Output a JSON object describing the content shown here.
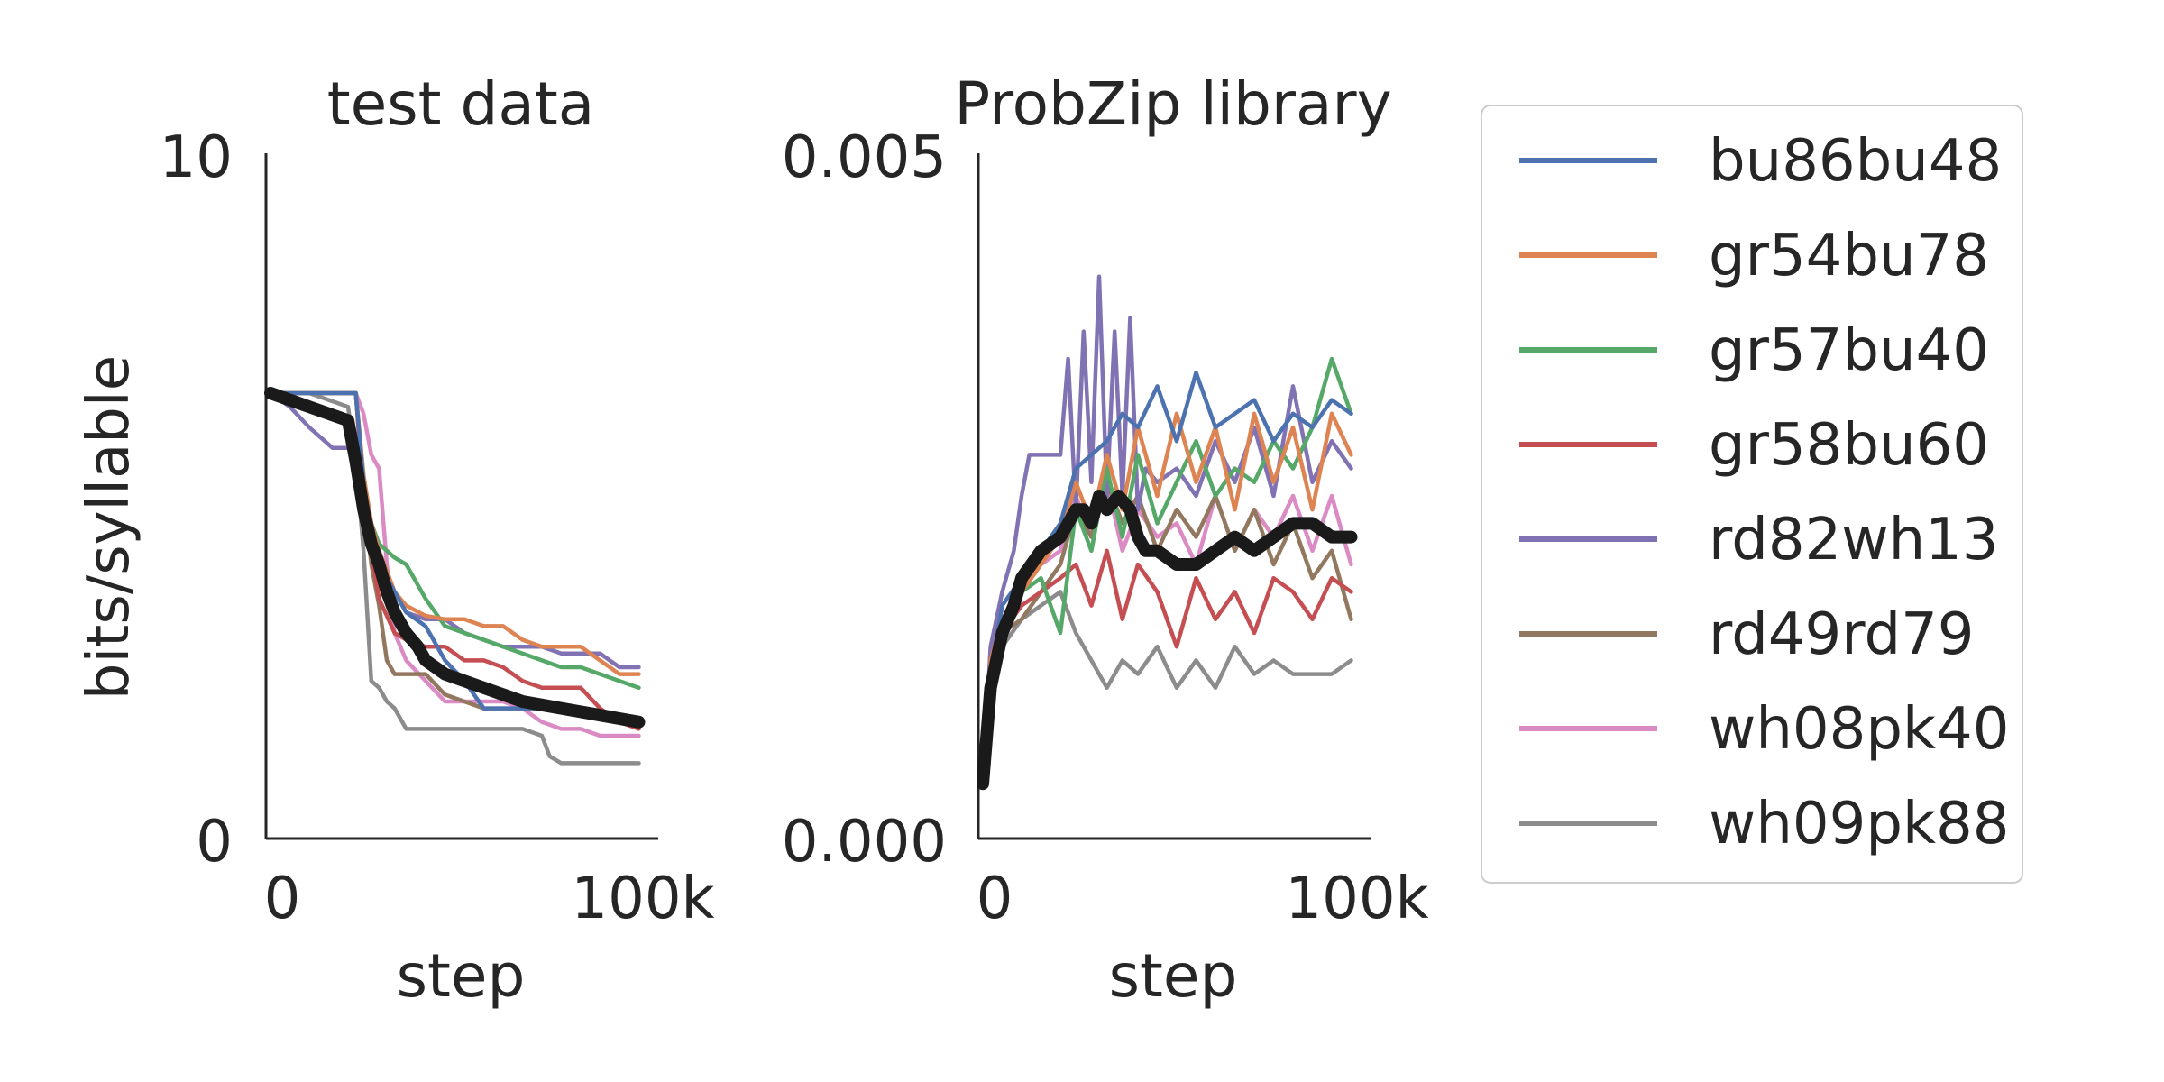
{
  "legend": {
    "position": "right",
    "entries": [
      "bu86bu48",
      "gr54bu78",
      "gr57bu40",
      "gr58bu60",
      "rd82wh13",
      "rd49rd79",
      "wh08pk40",
      "wh09pk88"
    ],
    "colors": [
      "#4c72b0",
      "#dd8452",
      "#55a868",
      "#c44e52",
      "#8172b3",
      "#937860",
      "#da8bc3",
      "#8c8c8c"
    ]
  },
  "mean_color": "#1a1a1a",
  "chart_data": [
    {
      "type": "line",
      "title": "test data",
      "xlabel": "step",
      "ylabel": "bits/syllable",
      "xlim": [
        0,
        100000
      ],
      "ylim": [
        0,
        10
      ],
      "xtick_labels": [
        "0",
        "100k"
      ],
      "ytick_labels": [
        "10",
        "0"
      ],
      "grid": false,
      "series": [
        {
          "name": "bu86bu48",
          "x": [
            0,
            10000,
            22000,
            24000,
            26000,
            28000,
            32000,
            35000,
            40000,
            45000,
            50000,
            55000,
            60000,
            65000,
            70000,
            75000,
            80000,
            85000,
            90000,
            95000
          ],
          "y": [
            6.5,
            6.5,
            6.5,
            5.2,
            4.4,
            4.0,
            3.6,
            3.3,
            3.1,
            2.6,
            2.3,
            1.9,
            1.9,
            1.9,
            1.9,
            1.85,
            1.8,
            1.8,
            1.8,
            1.75
          ]
        },
        {
          "name": "gr54bu78",
          "x": [
            0,
            10000,
            22000,
            24000,
            26000,
            28000,
            32000,
            35000,
            40000,
            45000,
            50000,
            55000,
            60000,
            65000,
            70000,
            75000,
            80000,
            85000,
            90000,
            95000
          ],
          "y": [
            6.5,
            6.5,
            6.5,
            5.3,
            4.6,
            4.2,
            3.6,
            3.4,
            3.25,
            3.2,
            3.2,
            3.1,
            3.1,
            2.9,
            2.8,
            2.8,
            2.8,
            2.6,
            2.4,
            2.4
          ]
        },
        {
          "name": "gr57bu40",
          "x": [
            0,
            10000,
            22000,
            24000,
            26000,
            28000,
            32000,
            35000,
            40000,
            45000,
            50000,
            55000,
            60000,
            65000,
            70000,
            75000,
            80000,
            85000,
            90000,
            95000
          ],
          "y": [
            6.5,
            6.5,
            6.5,
            5.3,
            4.6,
            4.3,
            4.1,
            4.0,
            3.5,
            3.1,
            3.0,
            2.9,
            2.8,
            2.7,
            2.6,
            2.5,
            2.5,
            2.4,
            2.3,
            2.2
          ]
        },
        {
          "name": "gr58bu60",
          "x": [
            0,
            10000,
            22000,
            24000,
            26000,
            28000,
            32000,
            35000,
            40000,
            45000,
            50000,
            55000,
            60000,
            65000,
            70000,
            75000,
            80000,
            85000,
            90000,
            95000
          ],
          "y": [
            6.5,
            6.5,
            6.5,
            5.0,
            4.2,
            3.5,
            3.0,
            2.9,
            2.8,
            2.8,
            2.6,
            2.6,
            2.5,
            2.3,
            2.2,
            2.2,
            2.2,
            1.9,
            1.7,
            1.6
          ]
        },
        {
          "name": "rd82wh13",
          "x": [
            0,
            5000,
            10000,
            14000,
            16000,
            20000,
            22000,
            24000,
            26000,
            28000,
            32000,
            35000,
            40000,
            45000,
            50000,
            55000,
            60000,
            65000,
            70000,
            75000,
            80000,
            85000,
            90000,
            95000
          ],
          "y": [
            6.5,
            6.3,
            6.0,
            5.8,
            5.7,
            5.7,
            5.7,
            5.0,
            4.6,
            4.2,
            3.6,
            3.3,
            3.2,
            3.2,
            3.0,
            2.9,
            2.8,
            2.8,
            2.8,
            2.7,
            2.7,
            2.7,
            2.5,
            2.5
          ]
        },
        {
          "name": "rd49rd79",
          "x": [
            0,
            10000,
            22000,
            24000,
            26000,
            28000,
            30000,
            32000,
            35000,
            40000,
            45000,
            50000,
            55000,
            60000,
            65000,
            70000,
            75000,
            80000,
            85000,
            90000,
            95000
          ],
          "y": [
            6.5,
            6.5,
            6.5,
            5.0,
            4.0,
            3.4,
            2.6,
            2.4,
            2.4,
            2.4,
            2.1,
            2.0,
            1.9,
            1.9,
            1.9,
            1.9,
            1.9,
            1.9,
            1.8,
            1.8,
            1.7
          ]
        },
        {
          "name": "wh08pk40",
          "x": [
            0,
            10000,
            22000,
            24000,
            26000,
            28000,
            30000,
            32000,
            35000,
            40000,
            45000,
            50000,
            55000,
            60000,
            65000,
            70000,
            75000,
            80000,
            85000,
            90000,
            95000
          ],
          "y": [
            6.5,
            6.5,
            6.5,
            6.2,
            5.6,
            5.4,
            4.0,
            3.0,
            2.6,
            2.3,
            2.0,
            2.0,
            2.0,
            2.0,
            1.9,
            1.7,
            1.6,
            1.6,
            1.5,
            1.5,
            1.5
          ]
        },
        {
          "name": "wh09pk88",
          "x": [
            0,
            10000,
            20000,
            22000,
            24000,
            26000,
            28000,
            30000,
            32000,
            35000,
            40000,
            45000,
            50000,
            55000,
            60000,
            65000,
            70000,
            72000,
            75000,
            80000,
            85000,
            90000,
            95000
          ],
          "y": [
            6.5,
            6.5,
            6.3,
            5.5,
            4.2,
            2.3,
            2.2,
            2.0,
            1.9,
            1.6,
            1.6,
            1.6,
            1.6,
            1.6,
            1.6,
            1.6,
            1.5,
            1.2,
            1.1,
            1.1,
            1.1,
            1.1,
            1.1
          ]
        },
        {
          "name": "mean",
          "x": [
            0,
            5000,
            10000,
            15000,
            20000,
            22000,
            24000,
            26000,
            28000,
            30000,
            32000,
            35000,
            38000,
            40000,
            45000,
            50000,
            55000,
            60000,
            65000,
            70000,
            75000,
            80000,
            85000,
            90000,
            95000
          ],
          "y": [
            6.5,
            6.4,
            6.3,
            6.2,
            6.1,
            5.5,
            4.8,
            4.3,
            4.0,
            3.6,
            3.3,
            3.0,
            2.8,
            2.6,
            2.4,
            2.3,
            2.2,
            2.1,
            2.0,
            1.95,
            1.9,
            1.85,
            1.8,
            1.75,
            1.7
          ]
        }
      ]
    },
    {
      "type": "line",
      "title": "ProbZip library",
      "xlabel": "step",
      "ylabel": "",
      "xlim": [
        0,
        100000
      ],
      "ylim": [
        0,
        0.005
      ],
      "xtick_labels": [
        "0",
        "100k"
      ],
      "ytick_labels": [
        "0.005",
        "0.000"
      ],
      "grid": false,
      "series": [
        {
          "name": "bu86bu48",
          "x": [
            0,
            2000,
            5000,
            10000,
            15000,
            20000,
            24000,
            28000,
            32000,
            36000,
            40000,
            45000,
            50000,
            55000,
            60000,
            65000,
            70000,
            75000,
            80000,
            85000,
            90000,
            95000
          ],
          "y": [
            0.0004,
            0.0012,
            0.0017,
            0.0019,
            0.0021,
            0.0023,
            0.0027,
            0.0028,
            0.0029,
            0.0031,
            0.003,
            0.0033,
            0.0029,
            0.0034,
            0.003,
            0.0031,
            0.0032,
            0.0029,
            0.0031,
            0.003,
            0.0032,
            0.0031
          ]
        },
        {
          "name": "gr54bu78",
          "x": [
            0,
            2000,
            5000,
            10000,
            15000,
            20000,
            24000,
            28000,
            32000,
            36000,
            40000,
            45000,
            50000,
            55000,
            60000,
            65000,
            70000,
            75000,
            80000,
            85000,
            90000,
            95000
          ],
          "y": [
            0.0004,
            0.0013,
            0.0016,
            0.0018,
            0.002,
            0.0022,
            0.0026,
            0.0023,
            0.0028,
            0.0024,
            0.003,
            0.0025,
            0.0031,
            0.0026,
            0.003,
            0.0024,
            0.0031,
            0.0026,
            0.003,
            0.0024,
            0.0031,
            0.0028
          ]
        },
        {
          "name": "gr57bu40",
          "x": [
            0,
            2000,
            5000,
            10000,
            15000,
            20000,
            24000,
            28000,
            32000,
            36000,
            40000,
            45000,
            50000,
            55000,
            60000,
            65000,
            70000,
            75000,
            80000,
            85000,
            90000,
            95000
          ],
          "y": [
            0.0004,
            0.0011,
            0.0016,
            0.0018,
            0.0019,
            0.0015,
            0.0024,
            0.0021,
            0.0027,
            0.0022,
            0.0028,
            0.0023,
            0.0026,
            0.0029,
            0.0025,
            0.0027,
            0.0026,
            0.0029,
            0.0027,
            0.003,
            0.0035,
            0.0031
          ]
        },
        {
          "name": "gr58bu60",
          "x": [
            0,
            2000,
            5000,
            10000,
            15000,
            20000,
            24000,
            28000,
            32000,
            36000,
            40000,
            45000,
            50000,
            55000,
            60000,
            65000,
            70000,
            75000,
            80000,
            85000,
            90000,
            95000
          ],
          "y": [
            0.0004,
            0.0012,
            0.0015,
            0.0017,
            0.0018,
            0.0019,
            0.002,
            0.0017,
            0.0021,
            0.0016,
            0.002,
            0.0018,
            0.0014,
            0.0019,
            0.0016,
            0.0018,
            0.0015,
            0.0019,
            0.0018,
            0.0016,
            0.0019,
            0.0018
          ]
        },
        {
          "name": "rd82wh13",
          "x": [
            0,
            2000,
            5000,
            8000,
            10000,
            12000,
            15000,
            20000,
            22000,
            24000,
            26000,
            28000,
            30000,
            32000,
            34000,
            36000,
            38000,
            40000,
            42000,
            45000,
            50000,
            55000,
            60000,
            65000,
            70000,
            75000,
            80000,
            85000,
            90000,
            95000
          ],
          "y": [
            0.0004,
            0.0014,
            0.0018,
            0.0021,
            0.0025,
            0.0028,
            0.0028,
            0.0028,
            0.0035,
            0.0024,
            0.0037,
            0.0026,
            0.0041,
            0.0025,
            0.0037,
            0.0025,
            0.0038,
            0.0024,
            0.0027,
            0.0026,
            0.0027,
            0.0025,
            0.0029,
            0.0026,
            0.003,
            0.0025,
            0.0033,
            0.0026,
            0.0029,
            0.0027
          ]
        },
        {
          "name": "rd49rd79",
          "x": [
            0,
            2000,
            5000,
            10000,
            15000,
            20000,
            24000,
            28000,
            32000,
            36000,
            40000,
            45000,
            50000,
            55000,
            60000,
            65000,
            70000,
            75000,
            80000,
            85000,
            90000,
            95000
          ],
          "y": [
            0.0004,
            0.0012,
            0.0015,
            0.0016,
            0.0018,
            0.002,
            0.0024,
            0.0022,
            0.0026,
            0.0023,
            0.0025,
            0.0021,
            0.0024,
            0.0022,
            0.0025,
            0.0021,
            0.0024,
            0.002,
            0.0023,
            0.0019,
            0.0021,
            0.0016
          ]
        },
        {
          "name": "wh08pk40",
          "x": [
            0,
            2000,
            5000,
            10000,
            15000,
            20000,
            24000,
            28000,
            32000,
            36000,
            40000,
            45000,
            50000,
            55000,
            60000,
            65000,
            70000,
            75000,
            80000,
            85000,
            90000,
            95000
          ],
          "y": [
            0.0004,
            0.0012,
            0.0016,
            0.0018,
            0.002,
            0.0021,
            0.0025,
            0.0022,
            0.0026,
            0.0021,
            0.0024,
            0.0022,
            0.0023,
            0.002,
            0.0025,
            0.0021,
            0.0024,
            0.0022,
            0.0025,
            0.0021,
            0.0025,
            0.002
          ]
        },
        {
          "name": "wh09pk88",
          "x": [
            0,
            2000,
            5000,
            10000,
            15000,
            20000,
            24000,
            28000,
            32000,
            36000,
            40000,
            45000,
            50000,
            55000,
            60000,
            65000,
            70000,
            75000,
            80000,
            85000,
            90000,
            95000
          ],
          "y": [
            0.0004,
            0.0011,
            0.0014,
            0.0016,
            0.0017,
            0.0018,
            0.0015,
            0.0013,
            0.0011,
            0.0013,
            0.0012,
            0.0014,
            0.0011,
            0.0013,
            0.0011,
            0.0014,
            0.0012,
            0.0013,
            0.0012,
            0.0012,
            0.0012,
            0.0013
          ]
        },
        {
          "name": "mean",
          "x": [
            0,
            2000,
            5000,
            8000,
            10000,
            15000,
            20000,
            22000,
            24000,
            26000,
            28000,
            30000,
            32000,
            35000,
            38000,
            40000,
            42000,
            45000,
            50000,
            55000,
            60000,
            65000,
            70000,
            75000,
            80000,
            85000,
            90000,
            95000
          ],
          "y": [
            0.0004,
            0.0011,
            0.0015,
            0.0017,
            0.0019,
            0.0021,
            0.0022,
            0.0023,
            0.0024,
            0.0024,
            0.0023,
            0.0025,
            0.0024,
            0.0025,
            0.0024,
            0.0022,
            0.0021,
            0.0021,
            0.002,
            0.002,
            0.0021,
            0.0022,
            0.0021,
            0.0022,
            0.0023,
            0.0023,
            0.0022,
            0.0022
          ]
        }
      ]
    }
  ]
}
